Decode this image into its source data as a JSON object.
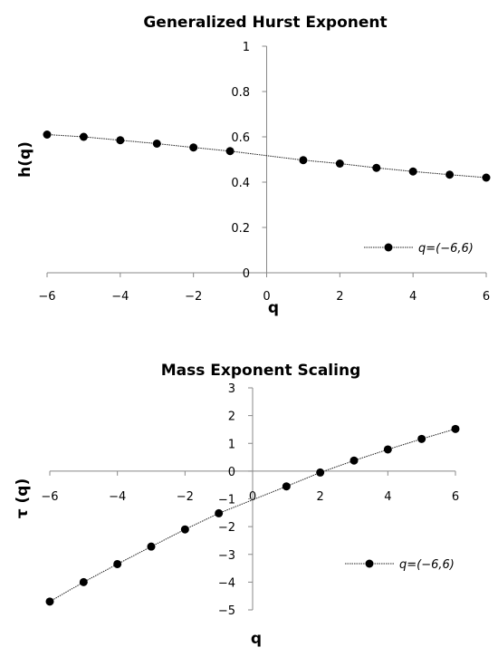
{
  "chart_data": [
    {
      "type": "line",
      "title": "Generalized Hurst Exponent",
      "xlabel": "q",
      "ylabel": "h(q)",
      "xlim": [
        -6,
        6
      ],
      "ylim": [
        0,
        1
      ],
      "x_ticks": [
        "-6",
        "-4",
        "-2",
        "0",
        "2",
        "4",
        "6"
      ],
      "y_ticks": [
        "0",
        "0.2",
        "0.4",
        "0.6",
        "0.8",
        "1"
      ],
      "legend_position": "bottom-right",
      "series": [
        {
          "name": "q=(-6,6)",
          "x": [
            -6,
            -5,
            -4,
            -3,
            -2,
            -1,
            1,
            2,
            3,
            4,
            5,
            6
          ],
          "y": [
            0.61,
            0.6,
            0.585,
            0.57,
            0.553,
            0.537,
            0.497,
            0.482,
            0.463,
            0.447,
            0.433,
            0.42
          ]
        }
      ]
    },
    {
      "type": "line",
      "title": "Mass Exponent Scaling",
      "xlabel": "q",
      "ylabel": "τ (q)",
      "xlim": [
        -6,
        6
      ],
      "ylim": [
        -5,
        3
      ],
      "x_ticks": [
        "-6",
        "-4",
        "-2",
        "0",
        "2",
        "4",
        "6"
      ],
      "y_ticks": [
        "-5",
        "-4",
        "-3",
        "-2",
        "-1",
        "0",
        "1",
        "2",
        "3"
      ],
      "legend_position": "bottom-right",
      "series": [
        {
          "name": "q=(-6,6)",
          "x": [
            -6,
            -5,
            -4,
            -3,
            -2,
            -1,
            1,
            2,
            3,
            4,
            5,
            6
          ],
          "y": [
            -4.7,
            -4.0,
            -3.35,
            -2.72,
            -2.1,
            -1.52,
            -0.55,
            -0.05,
            0.38,
            0.78,
            1.16,
            1.52
          ]
        }
      ]
    }
  ]
}
